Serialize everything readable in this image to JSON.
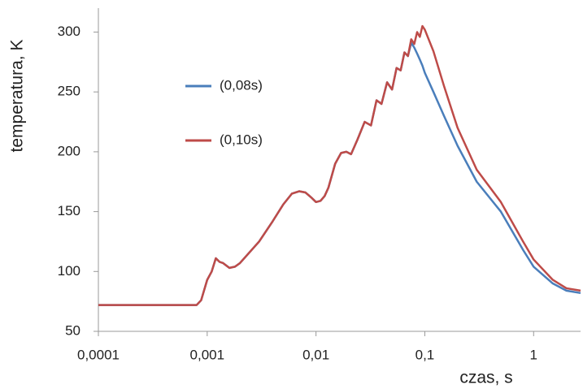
{
  "chart_data": {
    "type": "line",
    "xscale": "log",
    "grid": false,
    "xlabel": "czas, s",
    "ylabel": "temperatura, K",
    "xlim": [
      0.0001,
      2.7
    ],
    "ylim": [
      50,
      320
    ],
    "xticks": [
      {
        "value": 0.0001,
        "label": "0,0001"
      },
      {
        "value": 0.001,
        "label": "0,001"
      },
      {
        "value": 0.01,
        "label": "0,01"
      },
      {
        "value": 0.1,
        "label": "0,1"
      },
      1
    ],
    "yticks": [
      50,
      100,
      150,
      200,
      250,
      300
    ],
    "x": [
      0.0001,
      0.0008,
      0.00088,
      0.001,
      0.0011,
      0.0012,
      0.0013,
      0.0014,
      0.0016,
      0.0018,
      0.002,
      0.003,
      0.004,
      0.005,
      0.006,
      0.007,
      0.008,
      0.009,
      0.01,
      0.011,
      0.012,
      0.013,
      0.015,
      0.017,
      0.019,
      0.021,
      0.024,
      0.028,
      0.032,
      0.036,
      0.04,
      0.045,
      0.05,
      0.055,
      0.06,
      0.065,
      0.07,
      0.075,
      0.08,
      0.085,
      0.09,
      0.095,
      0.1,
      0.12,
      0.15,
      0.2,
      0.3,
      0.5,
      0.8,
      1,
      1.5,
      2,
      2.7
    ],
    "series": [
      {
        "name": "(0,08s)",
        "color": "#4a7ebb",
        "values": [
          72,
          72,
          76,
          93,
          100,
          111,
          108,
          107,
          103,
          104,
          107,
          125,
          142,
          156,
          165,
          167,
          166,
          162,
          158,
          159,
          163,
          170,
          190,
          199,
          200,
          198,
          210,
          225,
          222,
          243,
          240,
          258,
          252,
          270,
          268,
          283,
          280,
          291,
          287,
          282,
          277,
          272,
          266,
          250,
          230,
          205,
          175,
          150,
          118,
          104,
          90,
          84,
          82
        ]
      },
      {
        "name": "(0,10s)",
        "color": "#be4b48",
        "values": [
          72,
          72,
          76,
          93,
          100,
          111,
          108,
          107,
          103,
          104,
          107,
          125,
          142,
          156,
          165,
          167,
          166,
          162,
          158,
          159,
          163,
          170,
          190,
          199,
          200,
          198,
          210,
          225,
          222,
          243,
          240,
          258,
          252,
          270,
          268,
          283,
          280,
          294,
          290,
          300,
          296,
          305,
          302,
          284,
          255,
          220,
          185,
          158,
          125,
          110,
          93,
          86,
          84
        ]
      }
    ]
  }
}
